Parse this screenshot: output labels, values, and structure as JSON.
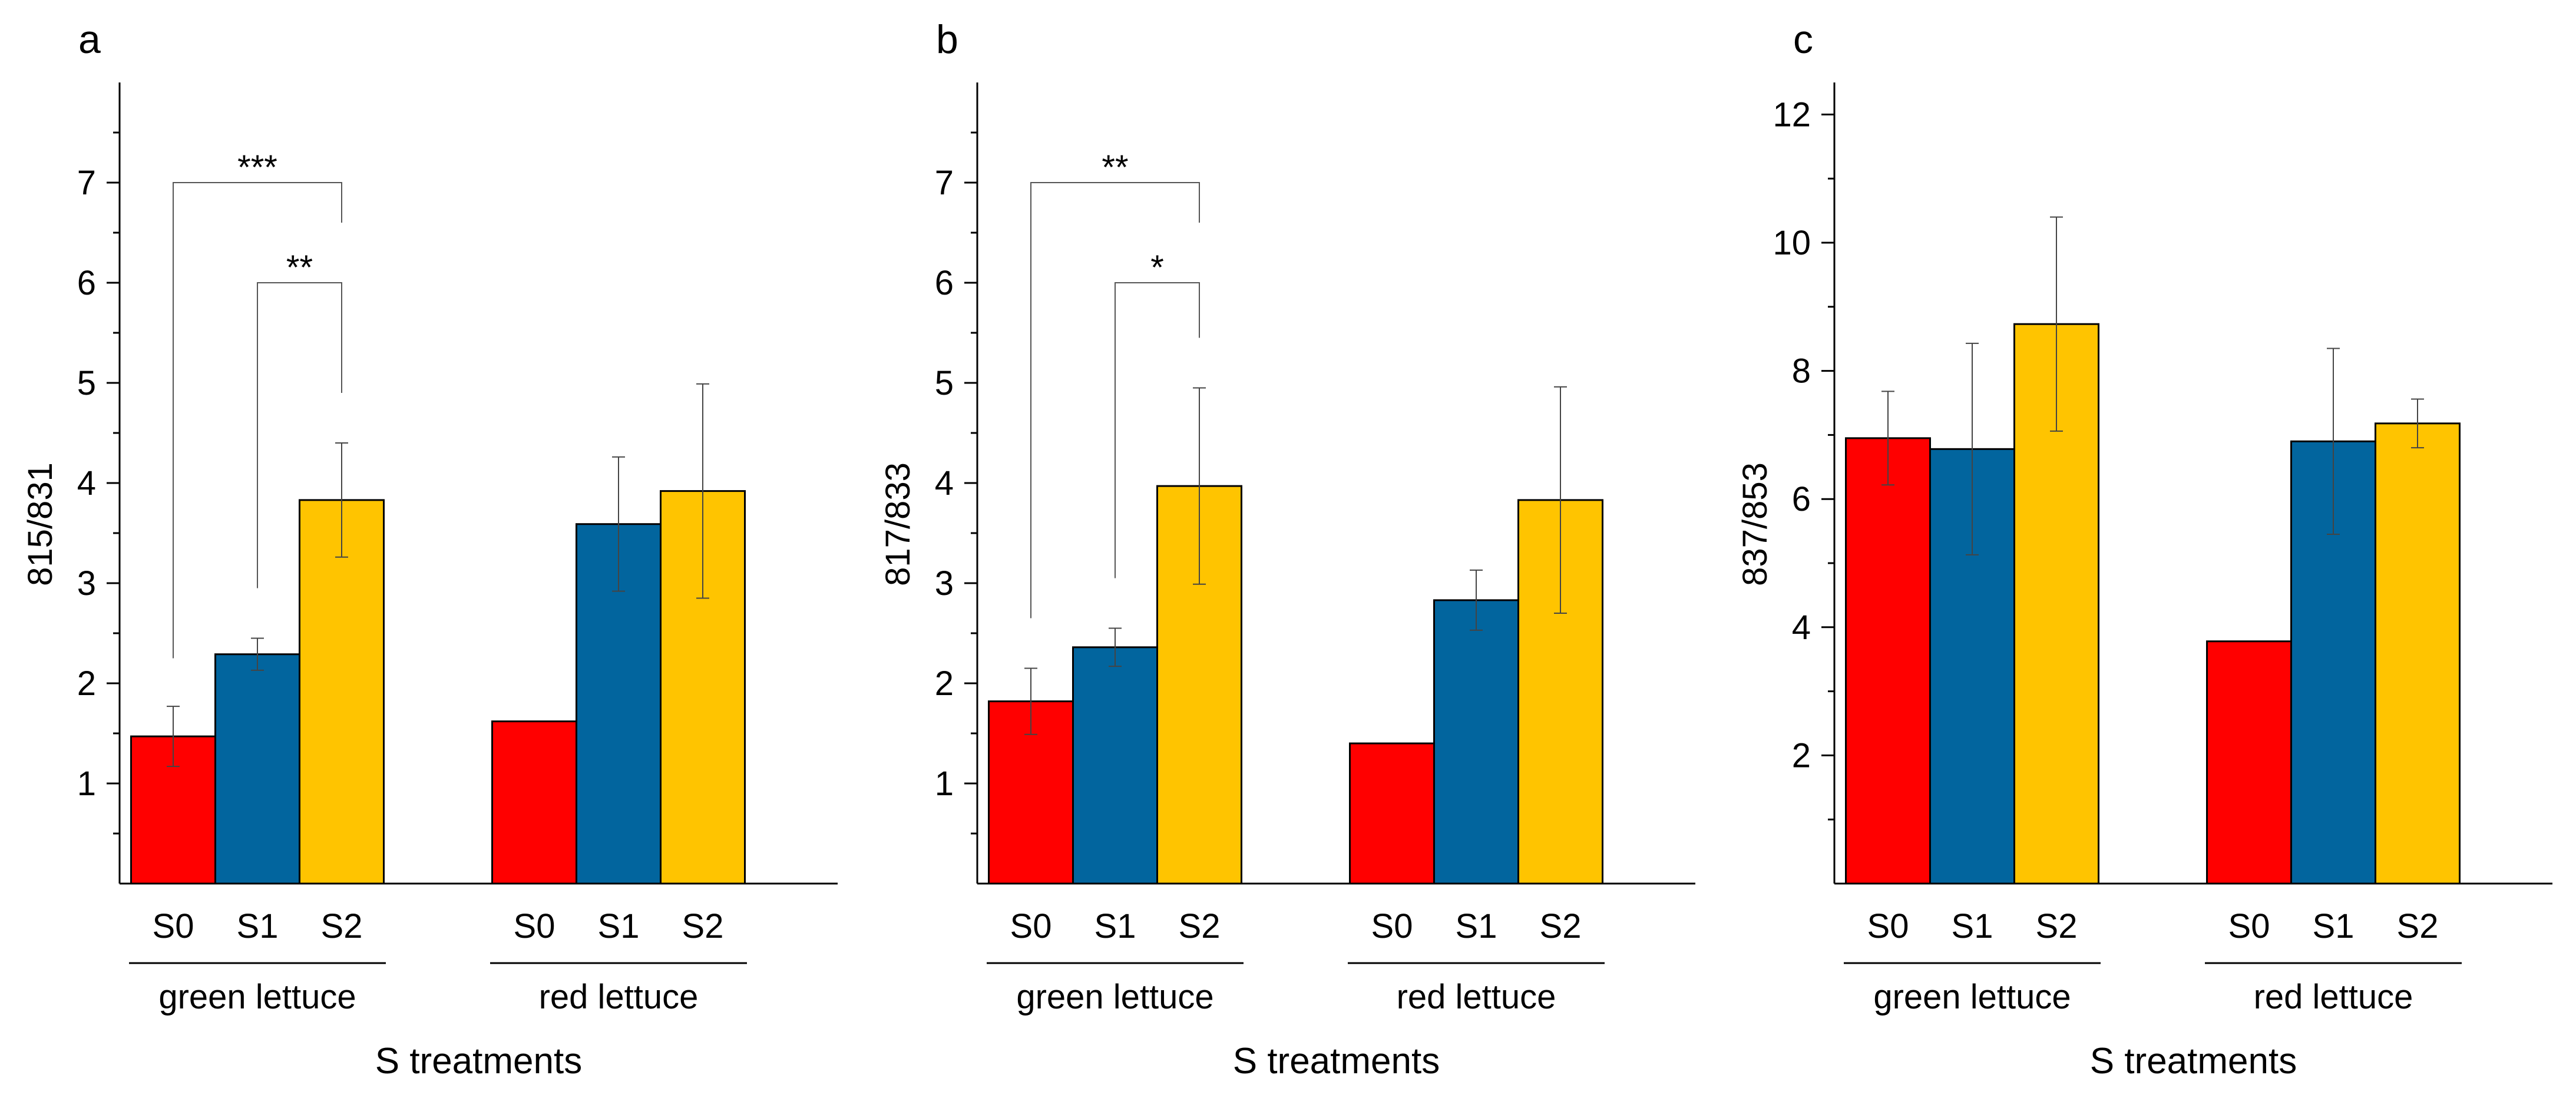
{
  "chart_data": [
    {
      "type": "bar",
      "panel_label": "a",
      "ylabel": "815/831",
      "xlabel": "S treatments",
      "ylim": [
        0,
        8
      ],
      "yticks": [
        1,
        2,
        3,
        4,
        5,
        6,
        7
      ],
      "groups": [
        "green lettuce",
        "red lettuce"
      ],
      "categories": [
        "S0",
        "S1",
        "S2"
      ],
      "series_colors": [
        "#ff0000",
        "#02659e",
        "#ffc400"
      ],
      "values": [
        [
          1.47,
          2.29,
          3.83
        ],
        [
          1.62,
          3.59,
          3.92
        ]
      ],
      "errors": [
        [
          0.3,
          0.16,
          0.57
        ],
        [
          0,
          0.67,
          1.07
        ]
      ],
      "annotations": [
        {
          "text": "***",
          "group": 0,
          "from": 0,
          "to": 2,
          "level": 7.0,
          "from_tip": 2.25,
          "to_tip": 6.6
        },
        {
          "text": "**",
          "group": 0,
          "from": 1,
          "to": 2,
          "level": 6.0,
          "from_tip": 2.95,
          "to_tip": 4.9
        }
      ]
    },
    {
      "type": "bar",
      "panel_label": "b",
      "ylabel": "817/833",
      "xlabel": "S treatments",
      "ylim": [
        0,
        8
      ],
      "yticks": [
        1,
        2,
        3,
        4,
        5,
        6,
        7
      ],
      "groups": [
        "green lettuce",
        "red lettuce"
      ],
      "categories": [
        "S0",
        "S1",
        "S2"
      ],
      "series_colors": [
        "#ff0000",
        "#02659e",
        "#ffc400"
      ],
      "values": [
        [
          1.82,
          2.36,
          3.97
        ],
        [
          1.4,
          2.83,
          3.83
        ]
      ],
      "errors": [
        [
          0.33,
          0.19,
          0.98
        ],
        [
          0,
          0.3,
          1.13
        ]
      ],
      "annotations": [
        {
          "text": "**",
          "group": 0,
          "from": 0,
          "to": 2,
          "level": 7.0,
          "from_tip": 2.65,
          "to_tip": 6.6
        },
        {
          "text": "*",
          "group": 0,
          "from": 1,
          "to": 2,
          "level": 6.0,
          "from_tip": 3.05,
          "to_tip": 5.45
        }
      ]
    },
    {
      "type": "bar",
      "panel_label": "c",
      "ylabel": "837/853",
      "xlabel": "S treatments",
      "ylim": [
        0,
        12.5
      ],
      "yticks": [
        2,
        4,
        6,
        8,
        10,
        12
      ],
      "minor_ticks": [
        1,
        3,
        5,
        7,
        9,
        11
      ],
      "groups": [
        "green lettuce",
        "red lettuce"
      ],
      "categories": [
        "S0",
        "S1",
        "S2"
      ],
      "series_colors": [
        "#ff0000",
        "#02659e",
        "#ffc400"
      ],
      "values": [
        [
          6.95,
          6.78,
          8.73
        ],
        [
          3.78,
          6.9,
          7.18
        ]
      ],
      "errors": [
        [
          0.73,
          1.65,
          1.67
        ],
        [
          0,
          1.45,
          0.38
        ]
      ],
      "annotations": []
    }
  ]
}
